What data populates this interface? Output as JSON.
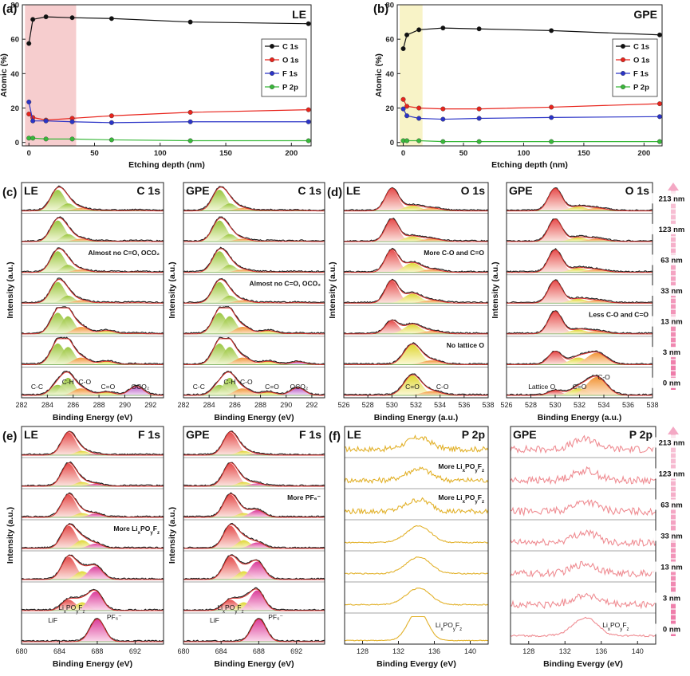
{
  "chart_data": [
    {
      "panel": "(a)",
      "type": "line",
      "title": "LE",
      "xlabel": "Etching depth (nm)",
      "ylabel": "Atomic (%)",
      "xlim": [
        -5,
        215
      ],
      "ylim": [
        -2,
        80
      ],
      "xticks": [
        0,
        50,
        100,
        150,
        200
      ],
      "yticks": [
        0,
        20,
        40,
        60,
        80
      ],
      "highlight": {
        "from": -3,
        "to": 36,
        "color": "#f4c4c6"
      },
      "x": [
        0,
        3,
        13,
        33,
        63,
        123,
        213
      ],
      "series": [
        {
          "name": "C 1s",
          "color": "#111111",
          "values": [
            57.5,
            71.5,
            73,
            72.5,
            72,
            70,
            69
          ]
        },
        {
          "name": "O 1s",
          "color": "#e8241c",
          "values": [
            16.5,
            14.5,
            13,
            14,
            15.5,
            17.5,
            19
          ]
        },
        {
          "name": "F 1s",
          "color": "#2b34c7",
          "values": [
            23.5,
            12.5,
            12.5,
            12,
            11.5,
            12,
            12
          ]
        },
        {
          "name": "P 2p",
          "color": "#39b83a",
          "values": [
            2.5,
            2.5,
            2,
            2,
            1.5,
            1,
            1
          ]
        }
      ],
      "legend": "right"
    },
    {
      "panel": "(b)",
      "type": "line",
      "title": "GPE",
      "xlabel": "Etching depth (nm)",
      "ylabel": "Atomic (%)",
      "xlim": [
        -5,
        215
      ],
      "ylim": [
        -2,
        80
      ],
      "xticks": [
        0,
        50,
        100,
        150,
        200
      ],
      "yticks": [
        0,
        20,
        40,
        60,
        80
      ],
      "highlight": {
        "from": -3,
        "to": 16,
        "color": "#f7f1bd"
      },
      "x": [
        0,
        3,
        13,
        33,
        63,
        123,
        213
      ],
      "series": [
        {
          "name": "C 1s",
          "color": "#111111",
          "values": [
            54.5,
            62.5,
            65.5,
            66.5,
            66,
            65,
            62.5
          ]
        },
        {
          "name": "O 1s",
          "color": "#e8241c",
          "values": [
            25,
            21,
            20,
            19.5,
            19.5,
            20.5,
            22.5
          ]
        },
        {
          "name": "F 1s",
          "color": "#2b34c7",
          "values": [
            19.5,
            15.5,
            14,
            13.5,
            14,
            14.5,
            15
          ]
        },
        {
          "name": "P 2p",
          "color": "#39b83a",
          "values": [
            1,
            1,
            1,
            0.5,
            0.5,
            0.5,
            0.5
          ]
        }
      ],
      "legend": "right"
    },
    {
      "panel": "(c)",
      "type": "stacked-spectra",
      "xlabel": "Binding Energy (eV)",
      "ylabel": "Intensity (a.u.)",
      "depths": [
        "213 nm",
        "123 nm",
        "63 nm",
        "33 nm",
        "13 nm",
        "3 nm",
        "0 nm"
      ],
      "subpanels": [
        {
          "sample": "LE",
          "element": "C 1s",
          "xlim": [
            282,
            293
          ],
          "xticks": [
            282,
            284,
            286,
            288,
            290,
            292
          ],
          "annotations": [
            {
              "row": 2,
              "text": "Almost no C=O, OCO₂"
            }
          ],
          "peak_labels": [
            {
              "text": "C-C",
              "at": 283.2
            },
            {
              "text": "C-H",
              "at": 285.6
            },
            {
              "text": "C-O",
              "at": 286.9
            },
            {
              "text": "C=O",
              "at": 288.7
            },
            {
              "text": "OCO₂",
              "at": 291.2
            }
          ]
        },
        {
          "sample": "GPE",
          "element": "C 1s",
          "xlim": [
            282,
            293
          ],
          "xticks": [
            282,
            284,
            286,
            288,
            290,
            292
          ],
          "annotations": [
            {
              "row": 3,
              "text": "Almost no C=O, OCO₂"
            }
          ],
          "peak_labels": [
            {
              "text": "C-C",
              "at": 283.2
            },
            {
              "text": "C-H",
              "at": 285.6
            },
            {
              "text": "C-O",
              "at": 286.9
            },
            {
              "text": "C=O",
              "at": 288.9
            },
            {
              "text": "OCO₂",
              "at": 291.0
            }
          ]
        }
      ]
    },
    {
      "panel": "(d)",
      "type": "stacked-spectra",
      "xlabel": "Binding Energy (a.u.)",
      "ylabel": "Intensity (a.u.)",
      "depths": [
        "213 nm",
        "123 nm",
        "63 nm",
        "33 nm",
        "13 nm",
        "3 nm",
        "0 nm"
      ],
      "subpanels": [
        {
          "sample": "LE",
          "element": "O 1s",
          "xlim": [
            526,
            538
          ],
          "xticks": [
            526,
            528,
            530,
            532,
            534,
            536,
            538
          ],
          "annotations": [
            {
              "row": 2,
              "text": "More C-O and C=O"
            },
            {
              "row": 5,
              "text": "No lattice O"
            }
          ],
          "peak_labels": [
            {
              "text": "C=O",
              "at": 531.7
            },
            {
              "text": "C-O",
              "at": 534.2
            }
          ]
        },
        {
          "sample": "GPE",
          "element": "O 1s",
          "xlim": [
            526,
            538
          ],
          "xticks": [
            526,
            528,
            530,
            532,
            534,
            536,
            538
          ],
          "annotations": [
            {
              "row": 4,
              "text": "Less C-O and C=O"
            }
          ],
          "peak_labels": [
            {
              "text": "Lattice O",
              "at": 528.9
            },
            {
              "text": "C=O",
              "at": 532.0
            },
            {
              "text": "C-O",
              "at": 534.0
            }
          ]
        }
      ]
    },
    {
      "panel": "(e)",
      "type": "stacked-spectra",
      "xlabel": "Binding Energy (eV)",
      "ylabel": "Intensity (a.u.)",
      "depths": [
        "213 nm",
        "123 nm",
        "63 nm",
        "33 nm",
        "13 nm",
        "3 nm",
        "0 nm"
      ],
      "subpanels": [
        {
          "sample": "LE",
          "element": "F 1s",
          "xlim": [
            680,
            695
          ],
          "xticks": [
            680,
            684,
            688,
            692
          ],
          "annotations": [
            {
              "row": 3,
              "text": "More LixPOyFz"
            }
          ],
          "peak_labels": [
            {
              "text": "LixPOyFz",
              "at": 685.3
            },
            {
              "text": "LiF",
              "at": 683.3
            },
            {
              "text": "PF₆⁻",
              "at": 689.8
            }
          ]
        },
        {
          "sample": "GPE",
          "element": "F 1s",
          "xlim": [
            680,
            695
          ],
          "xticks": [
            680,
            684,
            688,
            692
          ],
          "annotations": [
            {
              "row": 2,
              "text": "More PF₆⁻"
            }
          ],
          "peak_labels": [
            {
              "text": "LixPOyFz",
              "at": 685.0
            },
            {
              "text": "LiF",
              "at": 683.3
            },
            {
              "text": "PF₆⁻",
              "at": 689.8
            }
          ]
        }
      ]
    },
    {
      "panel": "(f)",
      "type": "stacked-spectra",
      "xlabel": "Binding Evergy (eV)",
      "ylabel": "",
      "depths": [
        "213 nm",
        "123 nm",
        "63 nm",
        "33 nm",
        "13 nm",
        "3 nm",
        "0 nm"
      ],
      "subpanels": [
        {
          "sample": "LE",
          "element": "P 2p",
          "xlim": [
            126,
            142
          ],
          "xticks": [
            128,
            132,
            136,
            140
          ],
          "color": "#e2b12a",
          "annotations": [
            {
              "row": 1,
              "text": "More LixPOyFz"
            },
            {
              "row": 2,
              "text": "More LixPOyFz"
            }
          ],
          "peak_labels": [
            {
              "text": "LixPOyFz",
              "at": 137.6
            }
          ]
        },
        {
          "sample": "GPE",
          "element": "P 2p",
          "xlim": [
            126,
            142
          ],
          "xticks": [
            128,
            132,
            136,
            140
          ],
          "color": "#ef8c92",
          "annotations": [],
          "peak_labels": [
            {
              "text": "LixPOyFz",
              "at": 137.6
            }
          ]
        }
      ]
    }
  ]
}
